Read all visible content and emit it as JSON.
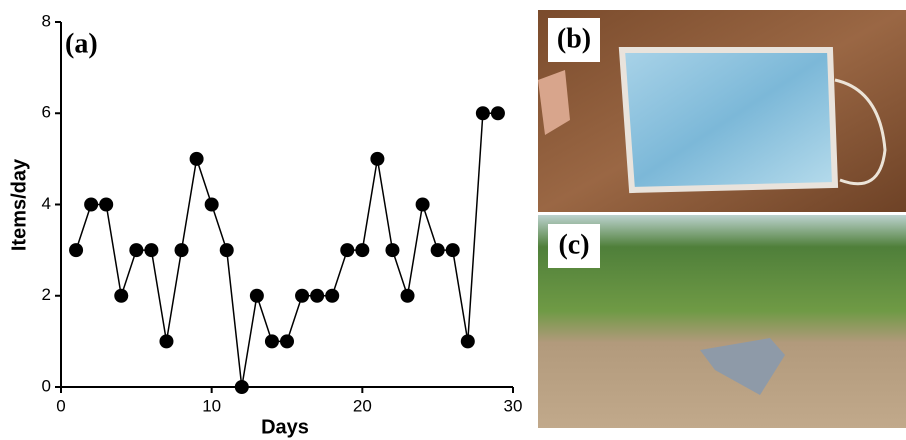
{
  "chart_data": {
    "type": "line",
    "panel_label": "(a)",
    "x_label": "Days",
    "y_label": "Items/day",
    "x": [
      1,
      2,
      3,
      4,
      5,
      6,
      7,
      8,
      9,
      10,
      11,
      12,
      13,
      14,
      15,
      16,
      17,
      18,
      19,
      20,
      21,
      22,
      23,
      24,
      25,
      26,
      27,
      28,
      29
    ],
    "values": [
      3,
      4,
      4,
      2,
      3,
      3,
      1,
      3,
      5,
      4,
      3,
      0,
      2,
      1,
      1,
      2,
      2,
      2,
      3,
      3,
      5,
      3,
      2,
      4,
      3,
      3,
      1,
      6,
      6
    ],
    "color": "#000000",
    "xlim": [
      0,
      30
    ],
    "xticks": [
      0,
      10,
      20,
      30
    ],
    "ylim": [
      0,
      8
    ],
    "yticks": [
      0,
      2,
      4,
      6,
      8
    ]
  },
  "photos": [
    {
      "label": "(b)"
    },
    {
      "label": "(c)"
    }
  ]
}
